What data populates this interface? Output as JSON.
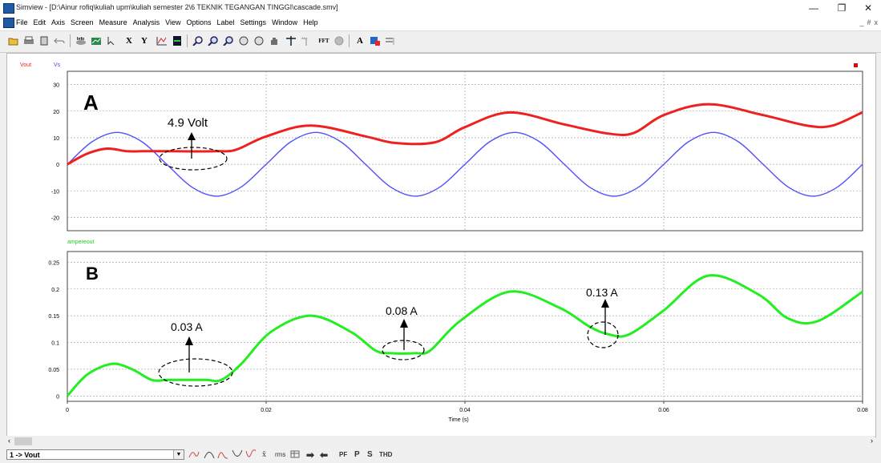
{
  "window": {
    "title": "Simview - [D:\\Ainur rofiq\\kuliah upm\\kuliah semester 2\\6 TEKNIK TEGANGAN TINGGI\\cascade.smv]",
    "minimize": "—",
    "maximize": "❐",
    "close": "✕"
  },
  "menu": {
    "items": [
      "File",
      "Edit",
      "Axis",
      "Screen",
      "Measure",
      "Analysis",
      "View",
      "Options",
      "Label",
      "Settings",
      "Window",
      "Help"
    ],
    "mdi_controls": [
      "_",
      "#",
      "x"
    ]
  },
  "toolbar": {
    "x_label": "X",
    "y_label": "Y",
    "fft_label": "FFT",
    "text_label": "A",
    "icons": [
      "open-icon",
      "print-icon",
      "copy-icon",
      "undo-icon",
      "info-icon",
      "chart-add-icon",
      "pointer-icon",
      "x-axis-icon",
      "y-axis-icon",
      "plot-icon",
      "screen-icon",
      "zoom-icon",
      "zoom-in-icon",
      "zoom-out-icon",
      "zoom-prev-icon",
      "zoom-next-icon",
      "pan-icon",
      "cursor-icon",
      "cursor-text-icon",
      "fft-icon",
      "circle-icon",
      "text-icon",
      "mark-icon",
      "stack-icon"
    ]
  },
  "chart_data": [
    {
      "type": "line",
      "legend": [
        {
          "name": "Vout",
          "color": "#ff2222"
        },
        {
          "name": "Vs",
          "color": "#4444ff"
        }
      ],
      "ylim": [
        -25,
        35
      ],
      "yticks": [
        "30",
        "20",
        "10",
        "0",
        "-10",
        "-20"
      ],
      "xlim": [
        0,
        0.08
      ],
      "grid": true,
      "panel_label": "A",
      "annotation": "4.9 Volt",
      "series": [
        {
          "name": "Vout",
          "color": "#ff2222",
          "x": [
            0,
            0.002,
            0.004,
            0.006,
            0.0075,
            0.01,
            0.015,
            0.017,
            0.02,
            0.0245,
            0.03,
            0.033,
            0.037,
            0.04,
            0.0445,
            0.05,
            0.0545,
            0.057,
            0.06,
            0.0645,
            0.07,
            0.0745,
            0.077,
            0.08
          ],
          "y": [
            0,
            4,
            5.9,
            4.9,
            4.9,
            4.9,
            4.9,
            5.5,
            10.5,
            14.6,
            10.5,
            8,
            8.3,
            14,
            19.5,
            15,
            11.5,
            11.8,
            18.5,
            22.6,
            18.5,
            14.5,
            14.6,
            19.6
          ]
        },
        {
          "name": "Vs",
          "color": "#4444ff",
          "x": [
            0,
            0.0025,
            0.005,
            0.0075,
            0.01,
            0.0125,
            0.015,
            0.0175,
            0.02,
            0.0225,
            0.025,
            0.0275,
            0.03,
            0.0325,
            0.035,
            0.0375,
            0.04,
            0.0425,
            0.045,
            0.0475,
            0.05,
            0.0525,
            0.055,
            0.0575,
            0.06,
            0.0625,
            0.065,
            0.0675,
            0.07,
            0.0725,
            0.075,
            0.0775,
            0.08
          ],
          "y": [
            0,
            8.5,
            12,
            8.5,
            0,
            -8.5,
            -12,
            -8.5,
            0,
            8.5,
            12,
            8.5,
            0,
            -8.5,
            -12,
            -8.5,
            0,
            8.5,
            12,
            8.5,
            0,
            -8.5,
            -12,
            -8.5,
            0,
            8.5,
            12,
            8.5,
            0,
            -8.5,
            -12,
            -8.5,
            0
          ]
        }
      ]
    },
    {
      "type": "line",
      "legend": [
        {
          "name": "ampereout",
          "color": "#22ee22"
        }
      ],
      "ylim": [
        -0.01,
        0.27
      ],
      "yticks": [
        "0.25",
        "0.2",
        "0.15",
        "0.1",
        "0.05",
        "0"
      ],
      "xlim": [
        0,
        0.08
      ],
      "xticks": [
        "0",
        "0.02",
        "0.04",
        "0.06",
        "0.08"
      ],
      "xlabel": "Time (s)",
      "grid": true,
      "panel_label": "B",
      "annotations": [
        "0.03 A",
        "0.08 A",
        "0.13 A"
      ],
      "series": [
        {
          "name": "ampereout",
          "color": "#22ee22",
          "x": [
            0,
            0.002,
            0.0045,
            0.0065,
            0.0085,
            0.01,
            0.012,
            0.014,
            0.0155,
            0.0175,
            0.0205,
            0.0245,
            0.0285,
            0.031,
            0.0325,
            0.035,
            0.0365,
            0.0395,
            0.0445,
            0.0495,
            0.0525,
            0.0545,
            0.0565,
            0.06,
            0.0645,
            0.0695,
            0.0725,
            0.0755,
            0.08
          ],
          "y": [
            0,
            0.04,
            0.06,
            0.05,
            0.03,
            0.03,
            0.03,
            0.03,
            0.03,
            0.06,
            0.12,
            0.15,
            0.12,
            0.085,
            0.08,
            0.08,
            0.085,
            0.14,
            0.195,
            0.165,
            0.13,
            0.115,
            0.115,
            0.16,
            0.225,
            0.19,
            0.145,
            0.14,
            0.195
          ]
        }
      ]
    }
  ],
  "status": {
    "trace_select": "1 -> Vout",
    "tools": [
      "peak-icon",
      "min-icon",
      "max-icon",
      "valley-icon",
      "average-label",
      "rms-label",
      "next-icon",
      "prev-icon"
    ],
    "labels": {
      "pf": "PF",
      "p": "P",
      "s": "S",
      "thd": "THD",
      "avg": "x̄",
      "rms": "rms"
    }
  }
}
